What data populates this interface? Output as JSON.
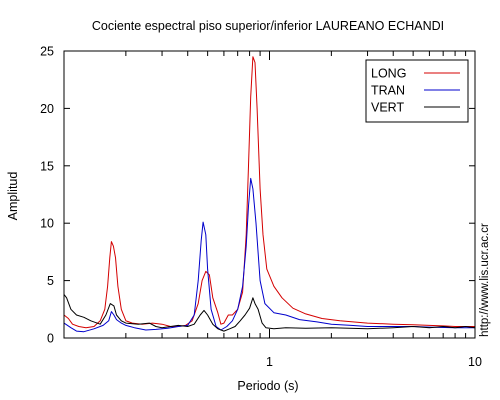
{
  "chart_data": {
    "type": "line",
    "title": "Cociente espectral piso superior/inferior LAUREANO ECHANDI",
    "xlabel": "Periodo (s)",
    "ylabel": "Amplitud",
    "x_scale": "log",
    "xlim": [
      0.1,
      10
    ],
    "ylim": [
      0,
      25
    ],
    "y_ticks": [
      0,
      5,
      10,
      15,
      20,
      25
    ],
    "x_tick_labels": [
      {
        "value": 1,
        "label": "1"
      },
      {
        "value": 10,
        "label": "10"
      }
    ],
    "x_minor_ticks": [
      0.2,
      0.3,
      0.4,
      0.5,
      0.6,
      0.7,
      0.8,
      0.9,
      2,
      3,
      4,
      5,
      6,
      7,
      8,
      9
    ],
    "legend_position": "top-right",
    "watermark": "http://www.lis.ucr.ac.cr",
    "series": [
      {
        "name": "LONG",
        "color": "#d40000",
        "points": [
          [
            0.1,
            2.0
          ],
          [
            0.105,
            1.7
          ],
          [
            0.11,
            1.2
          ],
          [
            0.118,
            1.0
          ],
          [
            0.128,
            0.9
          ],
          [
            0.14,
            1.0
          ],
          [
            0.15,
            1.5
          ],
          [
            0.158,
            2.5
          ],
          [
            0.163,
            4.5
          ],
          [
            0.167,
            7.0
          ],
          [
            0.17,
            8.4
          ],
          [
            0.174,
            8.0
          ],
          [
            0.178,
            7.0
          ],
          [
            0.183,
            4.5
          ],
          [
            0.19,
            2.5
          ],
          [
            0.2,
            1.5
          ],
          [
            0.215,
            1.3
          ],
          [
            0.24,
            1.2
          ],
          [
            0.27,
            1.3
          ],
          [
            0.3,
            1.2
          ],
          [
            0.33,
            1.0
          ],
          [
            0.36,
            1.0
          ],
          [
            0.39,
            1.1
          ],
          [
            0.42,
            1.5
          ],
          [
            0.45,
            3.0
          ],
          [
            0.47,
            5.0
          ],
          [
            0.49,
            5.8
          ],
          [
            0.51,
            5.5
          ],
          [
            0.53,
            3.5
          ],
          [
            0.56,
            2.2
          ],
          [
            0.58,
            1.2
          ],
          [
            0.6,
            1.3
          ],
          [
            0.63,
            2.0
          ],
          [
            0.66,
            2.0
          ],
          [
            0.7,
            2.5
          ],
          [
            0.74,
            4.0
          ],
          [
            0.77,
            9.0
          ],
          [
            0.79,
            15.0
          ],
          [
            0.81,
            21.0
          ],
          [
            0.83,
            24.5
          ],
          [
            0.85,
            24.0
          ],
          [
            0.87,
            20.0
          ],
          [
            0.9,
            13.0
          ],
          [
            0.93,
            9.0
          ],
          [
            0.97,
            6.0
          ],
          [
            1.05,
            4.5
          ],
          [
            1.15,
            3.5
          ],
          [
            1.3,
            2.6
          ],
          [
            1.5,
            2.1
          ],
          [
            1.8,
            1.7
          ],
          [
            2.2,
            1.5
          ],
          [
            3.0,
            1.3
          ],
          [
            4.0,
            1.2
          ],
          [
            5.0,
            1.15
          ],
          [
            6.0,
            1.1
          ],
          [
            7.0,
            1.05
          ],
          [
            8.0,
            1.0
          ],
          [
            9.0,
            1.0
          ],
          [
            10.0,
            1.0
          ]
        ]
      },
      {
        "name": "TRAN",
        "color": "#0000cc",
        "points": [
          [
            0.1,
            1.3
          ],
          [
            0.108,
            0.9
          ],
          [
            0.115,
            0.6
          ],
          [
            0.125,
            0.55
          ],
          [
            0.14,
            0.8
          ],
          [
            0.155,
            1.1
          ],
          [
            0.165,
            1.5
          ],
          [
            0.17,
            2.3
          ],
          [
            0.175,
            2.0
          ],
          [
            0.18,
            1.6
          ],
          [
            0.19,
            1.3
          ],
          [
            0.2,
            1.1
          ],
          [
            0.22,
            0.9
          ],
          [
            0.25,
            0.7
          ],
          [
            0.28,
            0.75
          ],
          [
            0.32,
            0.85
          ],
          [
            0.36,
            1.0
          ],
          [
            0.4,
            1.1
          ],
          [
            0.43,
            2.0
          ],
          [
            0.45,
            5.0
          ],
          [
            0.465,
            8.5
          ],
          [
            0.475,
            10.1
          ],
          [
            0.49,
            9.0
          ],
          [
            0.5,
            6.0
          ],
          [
            0.52,
            2.5
          ],
          [
            0.55,
            1.0
          ],
          [
            0.58,
            0.7
          ],
          [
            0.62,
            1.0
          ],
          [
            0.66,
            1.5
          ],
          [
            0.7,
            2.5
          ],
          [
            0.74,
            4.5
          ],
          [
            0.77,
            8.0
          ],
          [
            0.79,
            11.5
          ],
          [
            0.81,
            13.9
          ],
          [
            0.83,
            13.0
          ],
          [
            0.86,
            10.0
          ],
          [
            0.9,
            5.0
          ],
          [
            0.95,
            3.0
          ],
          [
            1.05,
            2.2
          ],
          [
            1.2,
            2.0
          ],
          [
            1.4,
            1.6
          ],
          [
            1.7,
            1.4
          ],
          [
            2.0,
            1.2
          ],
          [
            2.5,
            1.1
          ],
          [
            3.0,
            1.0
          ],
          [
            4.0,
            1.0
          ],
          [
            5.0,
            1.0
          ],
          [
            6.0,
            0.95
          ],
          [
            8.0,
            0.9
          ],
          [
            10.0,
            0.9
          ]
        ]
      },
      {
        "name": "VERT",
        "color": "#000000",
        "points": [
          [
            0.1,
            3.8
          ],
          [
            0.103,
            3.5
          ],
          [
            0.108,
            2.5
          ],
          [
            0.115,
            2.0
          ],
          [
            0.125,
            1.8
          ],
          [
            0.135,
            1.5
          ],
          [
            0.15,
            1.2
          ],
          [
            0.16,
            2.0
          ],
          [
            0.168,
            3.0
          ],
          [
            0.175,
            2.8
          ],
          [
            0.18,
            2.0
          ],
          [
            0.19,
            1.5
          ],
          [
            0.2,
            1.3
          ],
          [
            0.23,
            1.2
          ],
          [
            0.26,
            1.3
          ],
          [
            0.28,
            1.0
          ],
          [
            0.3,
            0.9
          ],
          [
            0.33,
            1.0
          ],
          [
            0.36,
            1.1
          ],
          [
            0.4,
            1.0
          ],
          [
            0.43,
            1.2
          ],
          [
            0.46,
            2.0
          ],
          [
            0.48,
            2.4
          ],
          [
            0.5,
            2.0
          ],
          [
            0.53,
            1.2
          ],
          [
            0.56,
            0.8
          ],
          [
            0.6,
            0.6
          ],
          [
            0.64,
            0.8
          ],
          [
            0.68,
            1.0
          ],
          [
            0.72,
            1.5
          ],
          [
            0.76,
            2.0
          ],
          [
            0.8,
            2.6
          ],
          [
            0.83,
            3.5
          ],
          [
            0.85,
            3.0
          ],
          [
            0.88,
            2.5
          ],
          [
            0.92,
            1.3
          ],
          [
            0.96,
            0.9
          ],
          [
            1.05,
            0.8
          ],
          [
            1.2,
            0.9
          ],
          [
            1.5,
            0.85
          ],
          [
            2.0,
            0.9
          ],
          [
            3.0,
            0.8
          ],
          [
            4.0,
            0.9
          ],
          [
            5.0,
            1.0
          ],
          [
            6.0,
            0.9
          ],
          [
            7.0,
            1.0
          ],
          [
            8.0,
            0.9
          ],
          [
            9.0,
            1.0
          ],
          [
            10.0,
            0.9
          ]
        ]
      }
    ]
  }
}
